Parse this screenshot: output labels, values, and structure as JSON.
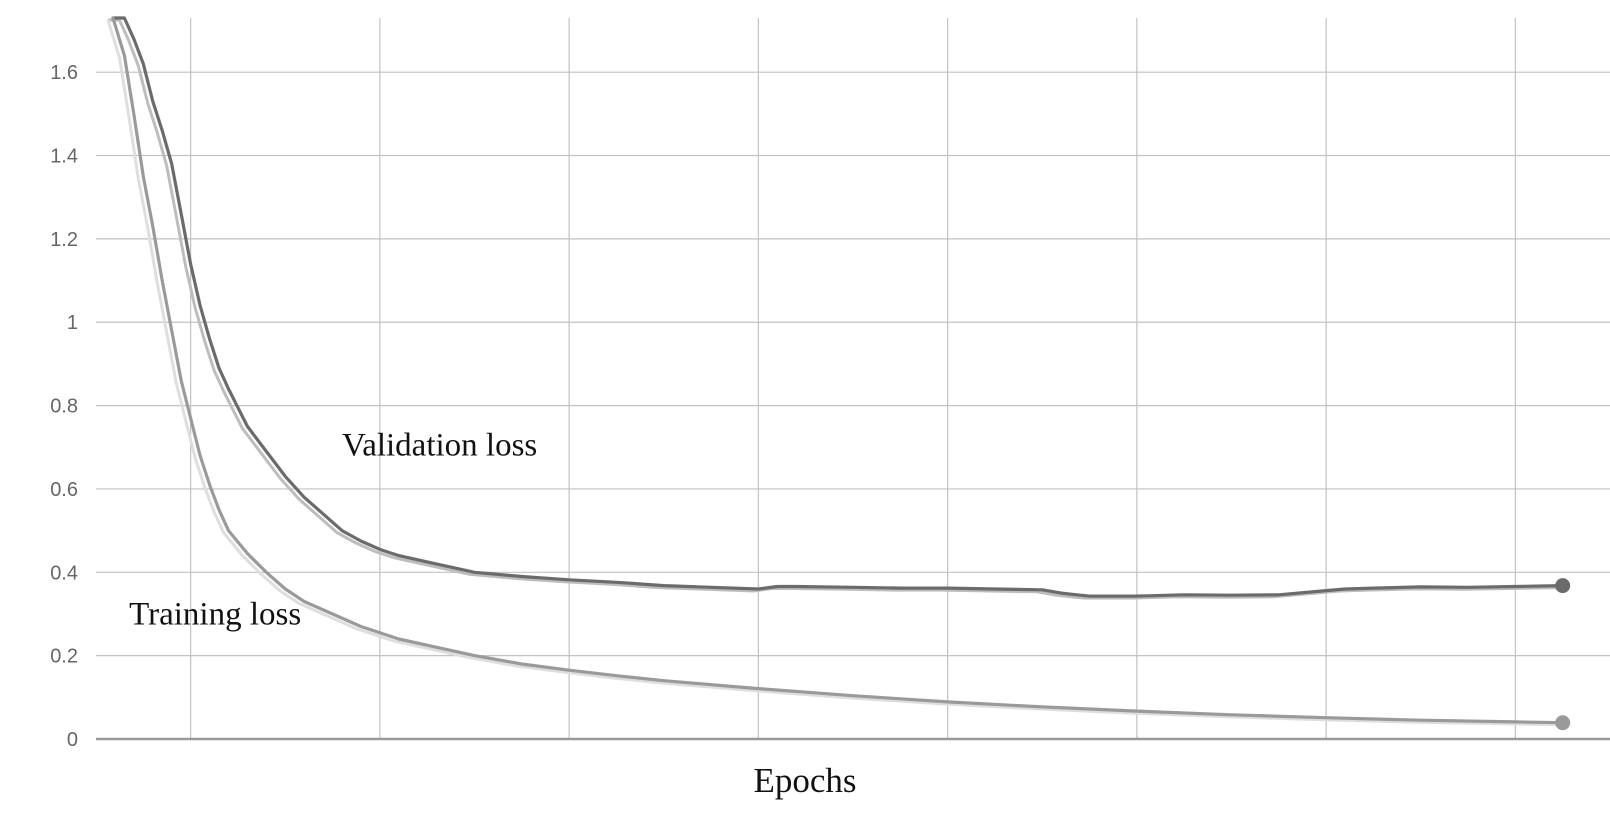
{
  "chart_data": {
    "type": "line",
    "title": "",
    "xlabel": "Epochs",
    "ylabel": "",
    "xlim": [
      0,
      160
    ],
    "ylim": [
      0,
      1.73
    ],
    "x_gridlines": [
      10,
      30,
      50,
      70,
      90,
      110,
      130,
      150
    ],
    "yticks": [
      {
        "value": 0,
        "label": "0"
      },
      {
        "value": 0.2,
        "label": "0.2"
      },
      {
        "value": 0.4,
        "label": "0.4"
      },
      {
        "value": 0.6,
        "label": "0.6"
      },
      {
        "value": 0.8,
        "label": "0.8"
      },
      {
        "value": 1,
        "label": "1"
      },
      {
        "value": 1.2,
        "label": "1.2"
      },
      {
        "value": 1.4,
        "label": "1.4"
      },
      {
        "value": 1.6,
        "label": "1.6"
      }
    ],
    "grid": true,
    "annotations": [
      {
        "text": "Validation loss",
        "x": 26,
        "y": 0.68
      },
      {
        "text": "Training loss",
        "x": 3.5,
        "y": 0.275
      }
    ],
    "series": [
      {
        "color": "#6b6b6b",
        "raw_color": "#bdbdbd",
        "end_marker": true,
        "x": [
          1.8,
          3,
          4,
          5,
          6,
          7,
          8,
          9,
          10,
          11,
          12,
          13,
          14,
          16,
          18,
          20,
          22,
          24,
          26,
          28,
          30,
          32,
          35,
          40,
          45,
          50,
          55,
          60,
          65,
          70,
          72,
          74,
          80,
          85,
          90,
          95,
          100,
          102,
          104,
          105,
          110,
          115,
          120,
          125,
          130,
          132,
          135,
          140,
          145,
          150,
          155
        ],
        "y": [
          1.73,
          1.73,
          1.68,
          1.62,
          1.53,
          1.46,
          1.38,
          1.26,
          1.14,
          1.04,
          0.96,
          0.89,
          0.84,
          0.75,
          0.69,
          0.63,
          0.58,
          0.54,
          0.5,
          0.475,
          0.455,
          0.44,
          0.425,
          0.4,
          0.39,
          0.382,
          0.376,
          0.368,
          0.364,
          0.36,
          0.366,
          0.366,
          0.364,
          0.362,
          0.362,
          0.36,
          0.358,
          0.35,
          0.345,
          0.343,
          0.343,
          0.346,
          0.345,
          0.346,
          0.356,
          0.36,
          0.362,
          0.365,
          0.364,
          0.366,
          0.368
        ]
      },
      {
        "color": "#9a9a9a",
        "raw_color": "#dedede",
        "end_marker": true,
        "x": [
          1.8,
          3,
          4,
          5,
          6,
          7,
          8,
          9,
          10,
          11,
          12,
          13,
          14,
          16,
          18,
          20,
          22,
          25,
          28,
          32,
          36,
          40,
          45,
          50,
          55,
          60,
          70,
          80,
          90,
          100,
          110,
          120,
          130,
          140,
          150,
          155
        ],
        "y": [
          1.73,
          1.64,
          1.5,
          1.35,
          1.23,
          1.1,
          0.98,
          0.86,
          0.77,
          0.68,
          0.61,
          0.55,
          0.5,
          0.445,
          0.4,
          0.36,
          0.33,
          0.3,
          0.27,
          0.24,
          0.22,
          0.2,
          0.18,
          0.165,
          0.152,
          0.14,
          0.121,
          0.104,
          0.089,
          0.077,
          0.067,
          0.058,
          0.051,
          0.045,
          0.041,
          0.039
        ]
      }
    ]
  }
}
